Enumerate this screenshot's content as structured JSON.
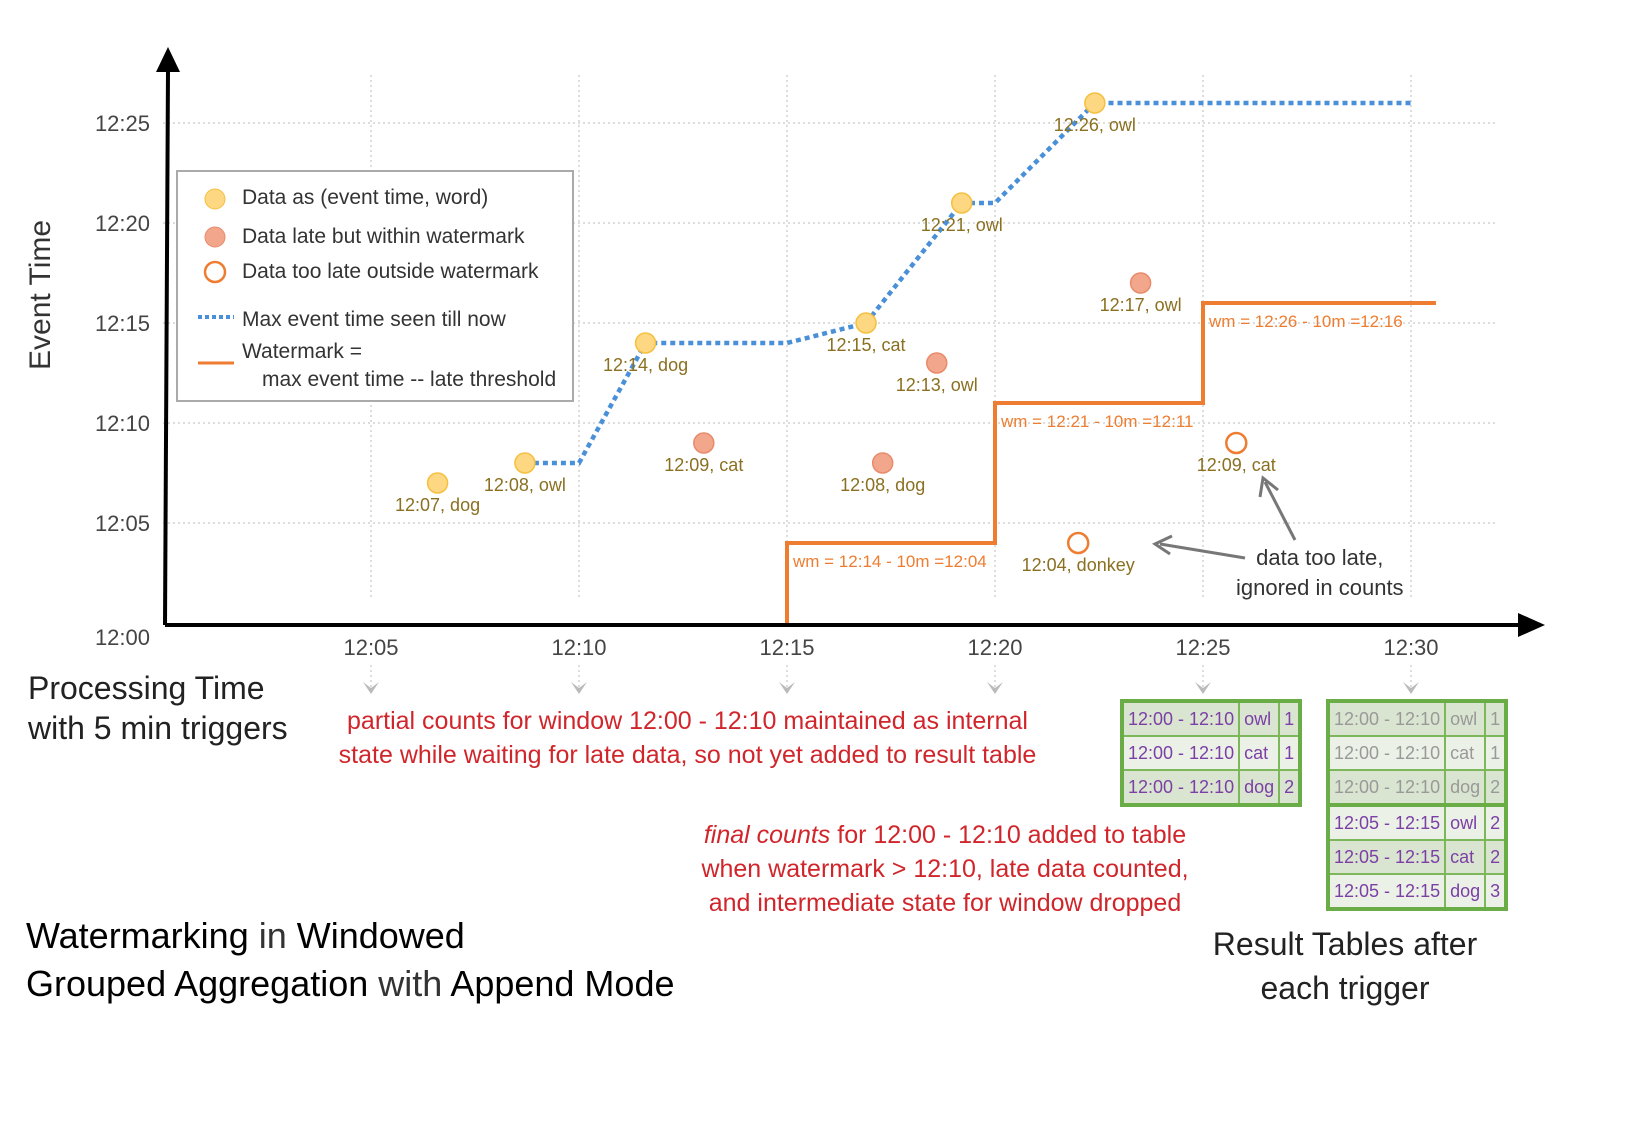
{
  "chart_data": {
    "type": "scatter",
    "xlabel": "Processing Time",
    "xlabel_sub": "with 5 min triggers",
    "ylabel": "Event Time",
    "x_ticks": [
      "12:05",
      "12:10",
      "12:15",
      "12:20",
      "12:25",
      "12:30"
    ],
    "y_ticks": [
      "12:00",
      "12:05",
      "12:10",
      "12:15",
      "12:20",
      "12:25"
    ],
    "xlim": [
      "12:00",
      "12:30"
    ],
    "ylim": [
      "12:00",
      "12:27"
    ],
    "grid": true,
    "colors": {
      "on_time": "#fdd782",
      "late": "#f2a78c",
      "too_late": "#ee7d31",
      "max_line": "#4a90d9",
      "watermark": "#ee7d31",
      "point_label": "#8a7020",
      "wm_label": "#ee7d31"
    },
    "points": [
      {
        "proc": "12:06:36",
        "event": "12:07",
        "label": "12:07, dog",
        "kind": "on_time"
      },
      {
        "proc": "12:08:42",
        "event": "12:08",
        "label": "12:08, owl",
        "kind": "on_time"
      },
      {
        "proc": "12:11:36",
        "event": "12:14",
        "label": "12:14, dog",
        "kind": "on_time"
      },
      {
        "proc": "12:13:00",
        "event": "12:09",
        "label": "12:09, cat",
        "kind": "late"
      },
      {
        "proc": "12:16:54",
        "event": "12:15",
        "label": "12:15, cat",
        "kind": "on_time"
      },
      {
        "proc": "12:17:18",
        "event": "12:08",
        "label": "12:08, dog",
        "kind": "late"
      },
      {
        "proc": "12:18:36",
        "event": "12:13",
        "label": "12:13, owl",
        "kind": "late"
      },
      {
        "proc": "12:19:12",
        "event": "12:21",
        "label": "12:21, owl",
        "kind": "on_time"
      },
      {
        "proc": "12:22:24",
        "event": "12:26",
        "label": "12:26, owl",
        "kind": "on_time"
      },
      {
        "proc": "12:23:30",
        "event": "12:17",
        "label": "12:17, owl",
        "kind": "late"
      },
      {
        "proc": "12:22:00",
        "event": "12:04",
        "label": "12:04, donkey",
        "kind": "too_late"
      },
      {
        "proc": "12:25:48",
        "event": "12:09",
        "label": "12:09, cat",
        "kind": "too_late"
      }
    ],
    "series": [
      {
        "name": "Max event time seen till now",
        "style": "dotted",
        "points": [
          [
            "12:08:42",
            "12:08"
          ],
          [
            "12:10:00",
            "12:08"
          ],
          [
            "12:11:36",
            "12:14"
          ],
          [
            "12:15:00",
            "12:14"
          ],
          [
            "12:16:54",
            "12:15"
          ],
          [
            "12:19:12",
            "12:21"
          ],
          [
            "12:20:00",
            "12:21"
          ],
          [
            "12:22:24",
            "12:26"
          ],
          [
            "12:30:00",
            "12:26"
          ]
        ]
      },
      {
        "name": "Watermark",
        "style": "solid",
        "points": [
          [
            "12:15:00",
            "12:00"
          ],
          [
            "12:15:00",
            "12:04"
          ],
          [
            "12:20:00",
            "12:04"
          ],
          [
            "12:20:00",
            "12:11"
          ],
          [
            "12:25:00",
            "12:11"
          ],
          [
            "12:25:00",
            "12:16"
          ],
          [
            "12:30:36",
            "12:16"
          ]
        ]
      }
    ],
    "annotations": [
      {
        "text": "wm = 12:14 - 10m =12:04",
        "proc": "12:15:00",
        "event": "12:04"
      },
      {
        "text": "wm = 12:21 - 10m =12:11",
        "proc": "12:20:00",
        "event": "12:11"
      },
      {
        "text": "wm = 12:26 - 10m =12:16",
        "proc": "12:25:00",
        "event": "12:16"
      }
    ]
  },
  "legend": {
    "items": [
      {
        "label": "Data as (event time, word)",
        "icon": "filled-yellow-circle"
      },
      {
        "label": "Data late but within watermark",
        "icon": "filled-salmon-circle"
      },
      {
        "label": "Data too late outside watermark",
        "icon": "hollow-orange-circle"
      },
      {
        "label": "Max event time seen till now",
        "icon": "blue-dotted-line"
      },
      {
        "label": "Watermark =",
        "label2": "max event time -- late threshold",
        "icon": "orange-line"
      }
    ]
  },
  "callout": {
    "line1": "data too late,",
    "line2": "ignored in counts"
  },
  "notes": {
    "partial": [
      "partial counts for window 12:00 - 12:10 maintained as internal",
      "state while waiting for late data, so not yet added  to result table"
    ],
    "final_em": "final counts",
    "final": [
      " for 12:00 - 12:10 added to table",
      "when watermark > 12:10, late data counted,",
      "and intermediate state for window dropped"
    ]
  },
  "title": {
    "w1": "Watermarking",
    "w2": " in ",
    "w3": "Windowed",
    "w4": "Grouped Aggregation",
    "w5": " with ",
    "w6": "Append Mode"
  },
  "result_caption": [
    "Result Tables after",
    "each trigger"
  ],
  "result_tables": [
    {
      "trigger": "12:25",
      "rows": [
        [
          "12:00 - 12:10",
          "owl",
          "1"
        ],
        [
          "12:00 - 12:10",
          "cat",
          "1"
        ],
        [
          "12:00 - 12:10",
          "dog",
          "2"
        ]
      ]
    },
    {
      "trigger": "12:30",
      "rows": [
        [
          "12:00 - 12:10",
          "owl",
          "1"
        ],
        [
          "12:00 - 12:10",
          "cat",
          "1"
        ],
        [
          "12:00 - 12:10",
          "dog",
          "2"
        ],
        [
          "12:05 - 12:15",
          "owl",
          "2"
        ],
        [
          "12:05 - 12:15",
          "cat",
          "2"
        ],
        [
          "12:05 - 12:15",
          "dog",
          "3"
        ]
      ]
    }
  ]
}
